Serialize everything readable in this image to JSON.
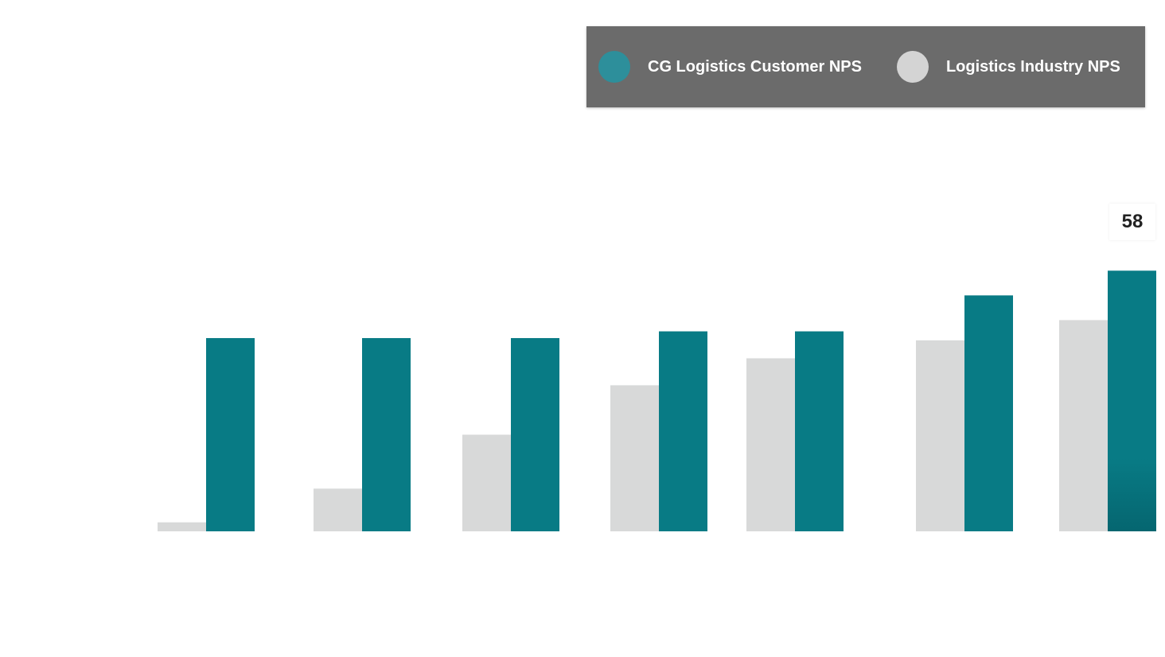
{
  "chart_data": {
    "type": "bar",
    "title": "",
    "xlabel": "",
    "ylabel": "",
    "ylim": [
      0,
      70
    ],
    "grid": false,
    "legend_position": "top-right",
    "categories": [
      "",
      "",
      "",
      "",
      "",
      "",
      ""
    ],
    "series": [
      {
        "name": "Logistics Industry NPS",
        "color": "#d8d9d9",
        "values": [
          2,
          9.5,
          21.5,
          32.5,
          38.5,
          42.5,
          47
        ]
      },
      {
        "name": "CG Logistics Customer NPS",
        "color": "#087b85",
        "values": [
          43,
          43,
          43,
          44.5,
          44.5,
          52.5,
          58
        ]
      }
    ],
    "data_labels": [
      {
        "series": "CG Logistics Customer NPS",
        "index": 6,
        "text": "58"
      }
    ]
  },
  "legend": {
    "background": "#6b6b6b",
    "items": [
      {
        "label": "CG Logistics Customer NPS",
        "color": "#2d8f9b"
      },
      {
        "label": "Logistics Industry NPS",
        "color": "#d4d4d4"
      }
    ]
  }
}
